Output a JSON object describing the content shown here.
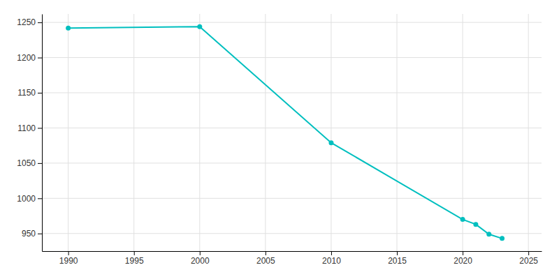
{
  "chart_data": {
    "type": "line",
    "x": [
      1990,
      2000,
      2010,
      2020,
      2021,
      2022,
      2023
    ],
    "values": [
      1242,
      1244,
      1079,
      970,
      963,
      949,
      943
    ],
    "color": "#00BFBF",
    "marker": "circle",
    "xlim": [
      1988,
      2026
    ],
    "ylim": [
      925,
      1262
    ],
    "xticks": [
      1990,
      1995,
      2000,
      2005,
      2010,
      2015,
      2020,
      2025
    ],
    "yticks": [
      950,
      1000,
      1050,
      1100,
      1150,
      1200,
      1250
    ],
    "grid": true
  }
}
